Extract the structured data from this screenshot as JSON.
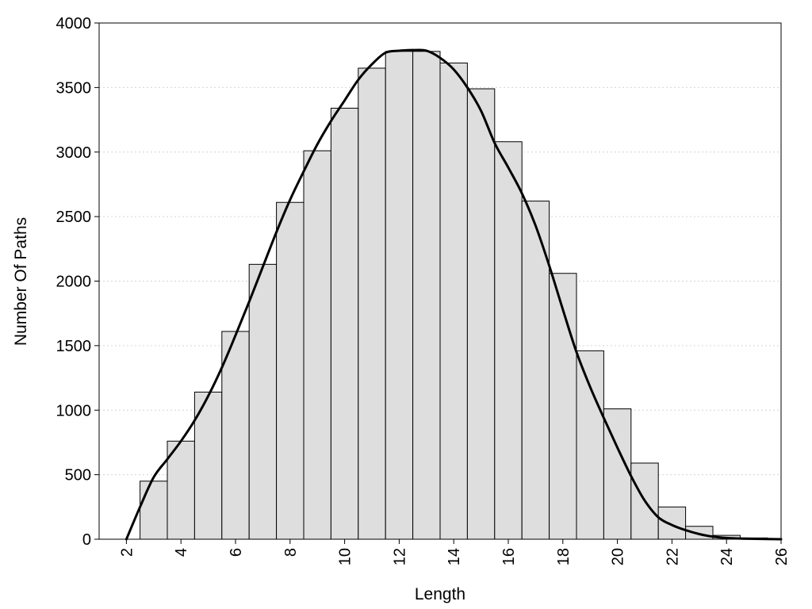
{
  "chart_data": {
    "type": "bar",
    "title": "",
    "xlabel": "Length",
    "ylabel": "Number Of Paths",
    "xlim": [
      1,
      26
    ],
    "ylim": [
      0,
      4000
    ],
    "y_ticks": [
      0,
      500,
      1000,
      1500,
      2000,
      2500,
      3000,
      3500,
      4000
    ],
    "x_ticks": [
      2,
      4,
      6,
      8,
      10,
      12,
      14,
      16,
      18,
      20,
      22,
      24,
      26
    ],
    "grid": "horizontal dotted",
    "bar_color": "#dedede",
    "bins": [
      {
        "x": 2,
        "value": 0
      },
      {
        "x": 3,
        "value": 450
      },
      {
        "x": 4,
        "value": 760
      },
      {
        "x": 5,
        "value": 1140
      },
      {
        "x": 6,
        "value": 1610
      },
      {
        "x": 7,
        "value": 2130
      },
      {
        "x": 8,
        "value": 2610
      },
      {
        "x": 9,
        "value": 3010
      },
      {
        "x": 10,
        "value": 3340
      },
      {
        "x": 11,
        "value": 3650
      },
      {
        "x": 12,
        "value": 3780
      },
      {
        "x": 13,
        "value": 3780
      },
      {
        "x": 14,
        "value": 3690
      },
      {
        "x": 15,
        "value": 3490
      },
      {
        "x": 16,
        "value": 3080
      },
      {
        "x": 17,
        "value": 2620
      },
      {
        "x": 18,
        "value": 2060
      },
      {
        "x": 19,
        "value": 1460
      },
      {
        "x": 20,
        "value": 1010
      },
      {
        "x": 21,
        "value": 590
      },
      {
        "x": 22,
        "value": 250
      },
      {
        "x": 23,
        "value": 100
      },
      {
        "x": 24,
        "value": 30
      },
      {
        "x": 25,
        "value": 10
      },
      {
        "x": 26,
        "value": 5
      }
    ],
    "curve": {
      "color": "#000000",
      "points": [
        [
          2.0,
          0
        ],
        [
          2.5,
          250
        ],
        [
          3.0,
          480
        ],
        [
          3.5,
          620
        ],
        [
          4.0,
          760
        ],
        [
          4.5,
          920
        ],
        [
          5.0,
          1110
        ],
        [
          5.5,
          1330
        ],
        [
          6.0,
          1580
        ],
        [
          6.5,
          1840
        ],
        [
          7.0,
          2110
        ],
        [
          7.5,
          2380
        ],
        [
          8.0,
          2630
        ],
        [
          8.5,
          2850
        ],
        [
          9.0,
          3060
        ],
        [
          9.5,
          3240
        ],
        [
          10.0,
          3400
        ],
        [
          10.5,
          3560
        ],
        [
          11.0,
          3680
        ],
        [
          11.5,
          3770
        ],
        [
          12.0,
          3785
        ],
        [
          12.5,
          3790
        ],
        [
          13.0,
          3785
        ],
        [
          13.5,
          3730
        ],
        [
          14.0,
          3640
        ],
        [
          14.5,
          3500
        ],
        [
          15.0,
          3320
        ],
        [
          15.5,
          3070
        ],
        [
          16.0,
          2880
        ],
        [
          16.5,
          2680
        ],
        [
          17.0,
          2430
        ],
        [
          17.5,
          2120
        ],
        [
          18.0,
          1780
        ],
        [
          18.5,
          1450
        ],
        [
          19.0,
          1180
        ],
        [
          19.5,
          940
        ],
        [
          20.0,
          710
        ],
        [
          20.5,
          490
        ],
        [
          21.0,
          300
        ],
        [
          21.5,
          170
        ],
        [
          22.0,
          110
        ],
        [
          22.5,
          70
        ],
        [
          23.0,
          40
        ],
        [
          23.5,
          20
        ],
        [
          24.0,
          10
        ],
        [
          24.5,
          5
        ],
        [
          25.0,
          3
        ],
        [
          26.0,
          0
        ]
      ]
    }
  }
}
